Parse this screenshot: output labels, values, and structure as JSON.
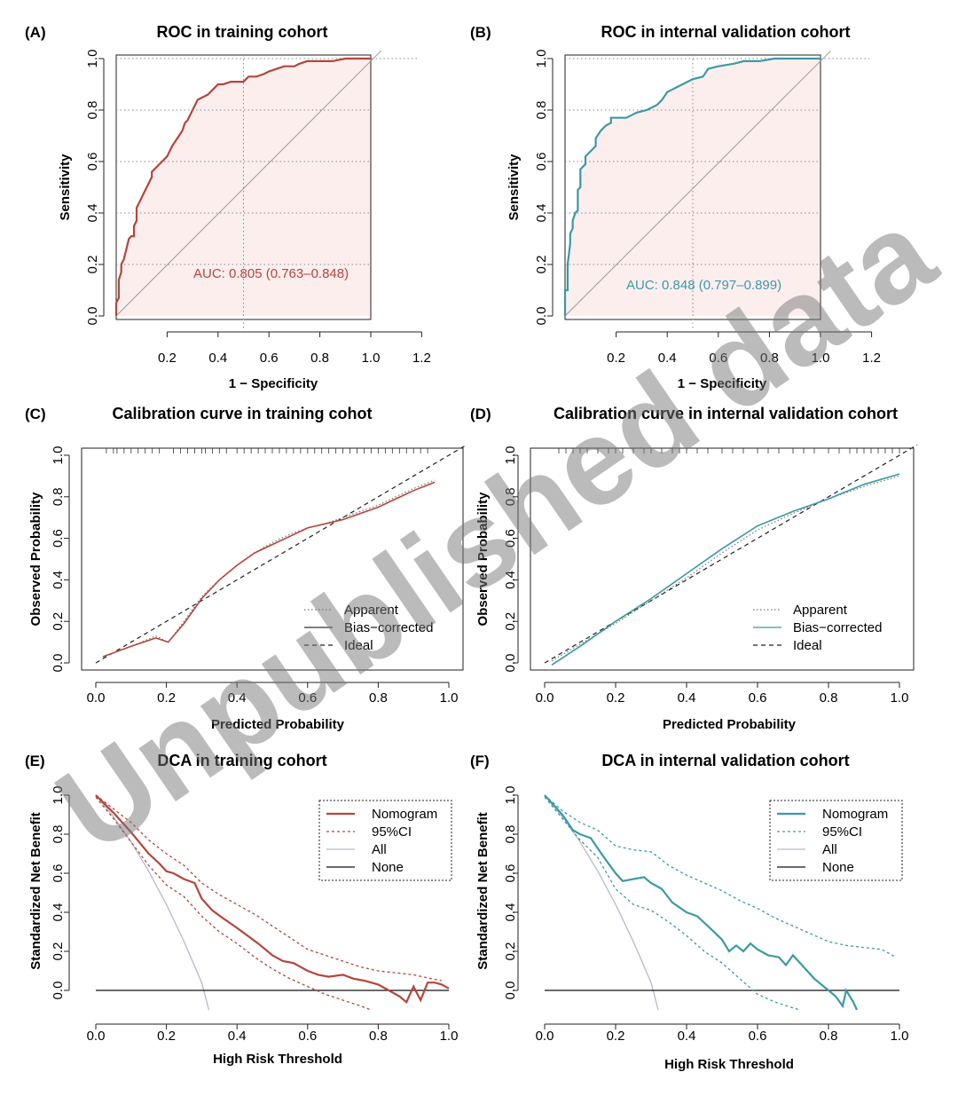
{
  "watermark": "Unpublished data",
  "colors": {
    "train": "#b5453a",
    "valid": "#3a9aa5",
    "fill": "#fdeeee",
    "all": "#b9b6cf",
    "none": "#111111",
    "ideal": "#222222"
  },
  "chart_data": [
    {
      "id": "A",
      "label": "(A)",
      "title": "ROC in training cohort",
      "type": "line",
      "xlabel": "1 − Specificity",
      "ylabel": "Sensitivity",
      "xlim": [
        0.0,
        1.2
      ],
      "ylim": [
        0.0,
        1.0
      ],
      "xticks": [
        "0.2",
        "0.4",
        "0.6",
        "0.8",
        "1.0",
        "1.2"
      ],
      "yticks": [
        "0.0",
        "0.2",
        "0.4",
        "0.6",
        "0.8",
        "1.0"
      ],
      "annotation": "AUC: 0.805 (0.763–0.848)",
      "series": [
        {
          "role": "roc",
          "x": [
            0.0,
            0.0,
            0.01,
            0.01,
            0.02,
            0.02,
            0.03,
            0.04,
            0.05,
            0.06,
            0.07,
            0.07,
            0.08,
            0.08,
            0.1,
            0.12,
            0.14,
            0.14,
            0.16,
            0.18,
            0.2,
            0.21,
            0.22,
            0.24,
            0.26,
            0.27,
            0.28,
            0.3,
            0.31,
            0.32,
            0.34,
            0.36,
            0.38,
            0.4,
            0.42,
            0.45,
            0.5,
            0.52,
            0.55,
            0.58,
            0.6,
            0.63,
            0.66,
            0.7,
            0.72,
            0.75,
            0.8,
            0.85,
            0.9,
            0.97,
            1.0
          ],
          "y": [
            0.0,
            0.05,
            0.07,
            0.14,
            0.17,
            0.2,
            0.22,
            0.26,
            0.3,
            0.31,
            0.31,
            0.35,
            0.37,
            0.42,
            0.46,
            0.5,
            0.54,
            0.56,
            0.58,
            0.6,
            0.62,
            0.64,
            0.66,
            0.69,
            0.72,
            0.75,
            0.76,
            0.8,
            0.82,
            0.84,
            0.85,
            0.86,
            0.88,
            0.9,
            0.9,
            0.91,
            0.91,
            0.93,
            0.93,
            0.94,
            0.95,
            0.96,
            0.97,
            0.97,
            0.98,
            0.99,
            0.99,
            0.99,
            1.0,
            1.0,
            1.0
          ]
        }
      ],
      "diagonal": [
        [
          0.0,
          0.0
        ],
        [
          1.04,
          1.03
        ]
      ],
      "vline": 1.0,
      "dotted_grid": {
        "h": [
          0.8,
          0.6,
          0.4,
          0.2
        ],
        "v": [
          0.5
        ],
        "h_top": 1.0
      }
    },
    {
      "id": "B",
      "label": "(B)",
      "title": "ROC in internal validation cohort",
      "type": "line",
      "xlabel": "1 − Specificity",
      "ylabel": "Sensitivity",
      "xlim": [
        0.0,
        1.2
      ],
      "ylim": [
        0.0,
        1.0
      ],
      "xticks": [
        "0.2",
        "0.4",
        "0.6",
        "0.8",
        "1.0",
        "1.2"
      ],
      "yticks": [
        "0.0",
        "0.2",
        "0.4",
        "0.6",
        "0.8",
        "1.0"
      ],
      "annotation": "AUC: 0.848 (0.797–0.899)",
      "series": [
        {
          "role": "roc",
          "x": [
            0.0,
            0.0,
            0.01,
            0.01,
            0.02,
            0.02,
            0.03,
            0.03,
            0.04,
            0.05,
            0.05,
            0.06,
            0.06,
            0.08,
            0.08,
            0.1,
            0.12,
            0.12,
            0.14,
            0.16,
            0.18,
            0.18,
            0.2,
            0.24,
            0.26,
            0.28,
            0.32,
            0.36,
            0.38,
            0.4,
            0.42,
            0.44,
            0.46,
            0.5,
            0.54,
            0.56,
            0.6,
            0.66,
            0.7,
            0.76,
            0.82,
            0.9,
            1.0
          ],
          "y": [
            0.0,
            0.1,
            0.1,
            0.2,
            0.28,
            0.32,
            0.34,
            0.37,
            0.4,
            0.41,
            0.49,
            0.5,
            0.57,
            0.59,
            0.62,
            0.64,
            0.66,
            0.69,
            0.72,
            0.74,
            0.75,
            0.77,
            0.77,
            0.77,
            0.78,
            0.79,
            0.8,
            0.82,
            0.84,
            0.87,
            0.88,
            0.89,
            0.9,
            0.92,
            0.93,
            0.96,
            0.97,
            0.98,
            0.99,
            0.99,
            1.0,
            1.0,
            1.0
          ]
        }
      ],
      "diagonal": [
        [
          0.0,
          0.0
        ],
        [
          1.04,
          1.03
        ]
      ],
      "vline": 1.0,
      "dotted_grid": {
        "h": [
          0.8,
          0.6,
          0.4,
          0.2
        ],
        "v": [
          0.5
        ],
        "h_top": 1.0
      }
    },
    {
      "id": "C",
      "label": "(C)",
      "title": "Calibration curve  in training cohot",
      "type": "line",
      "xlabel": "Predicted Probability",
      "ylabel": "Observed Probability",
      "xlim": [
        0.0,
        1.0
      ],
      "ylim": [
        0.0,
        1.0
      ],
      "xticks": [
        "0.0",
        "0.2",
        "0.4",
        "0.6",
        "0.8",
        "1.0"
      ],
      "yticks": [
        "0.0",
        "0.2",
        "0.4",
        "0.6",
        "0.8",
        "1.0"
      ],
      "legend": {
        "position": "bottom-right",
        "entries": [
          "Apparent",
          "Bias−corrected",
          "Ideal"
        ],
        "styles": [
          "dotted",
          "solid",
          "dashed"
        ]
      },
      "rug": [
        0.03,
        0.05,
        0.06,
        0.08,
        0.1,
        0.12,
        0.14,
        0.16,
        0.18,
        0.22,
        0.24,
        0.26,
        0.28,
        0.3,
        0.31,
        0.33,
        0.35,
        0.37,
        0.4,
        0.42,
        0.44,
        0.46,
        0.48,
        0.5,
        0.52,
        0.54,
        0.56,
        0.58,
        0.6,
        0.62,
        0.64,
        0.66,
        0.68,
        0.7,
        0.72,
        0.74,
        0.76,
        0.78,
        0.8,
        0.82,
        0.84,
        0.86,
        0.88,
        0.9,
        0.92,
        0.94
      ],
      "series": [
        {
          "name": "Apparent",
          "x": [
            0.02,
            0.1,
            0.17,
            0.205,
            0.25,
            0.3,
            0.35,
            0.4,
            0.45,
            0.5,
            0.55,
            0.6,
            0.65,
            0.7,
            0.75,
            0.8,
            0.85,
            0.9,
            0.96
          ],
          "y": [
            0.03,
            0.08,
            0.13,
            0.1,
            0.2,
            0.32,
            0.4,
            0.47,
            0.53,
            0.58,
            0.62,
            0.65,
            0.67,
            0.7,
            0.73,
            0.76,
            0.8,
            0.84,
            0.88
          ]
        },
        {
          "name": "Bias−corrected",
          "x": [
            0.02,
            0.1,
            0.17,
            0.205,
            0.25,
            0.3,
            0.35,
            0.4,
            0.45,
            0.5,
            0.55,
            0.6,
            0.65,
            0.7,
            0.75,
            0.8,
            0.85,
            0.9,
            0.96
          ],
          "y": [
            0.03,
            0.08,
            0.12,
            0.1,
            0.19,
            0.31,
            0.4,
            0.47,
            0.53,
            0.57,
            0.61,
            0.65,
            0.67,
            0.69,
            0.72,
            0.75,
            0.79,
            0.83,
            0.87
          ]
        },
        {
          "name": "Ideal",
          "x": [
            0.0,
            1.05
          ],
          "y": [
            0.0,
            1.05
          ]
        }
      ]
    },
    {
      "id": "D",
      "label": "(D)",
      "title": "Calibration curve  in internal validation cohort",
      "type": "line",
      "xlabel": "Predicted Probability",
      "ylabel": "Observed Probability",
      "xlim": [
        0.0,
        1.0
      ],
      "ylim": [
        0.0,
        1.0
      ],
      "xticks": [
        "0.0",
        "0.2",
        "0.4",
        "0.6",
        "0.8",
        "1.0"
      ],
      "yticks": [
        "0.0",
        "0.2",
        "0.4",
        "0.6",
        "0.8",
        "1.0"
      ],
      "legend": {
        "position": "bottom-right",
        "entries": [
          "Apparent",
          "Bias−corrected",
          "Ideal"
        ],
        "styles": [
          "dotted",
          "solid",
          "dashed"
        ]
      },
      "rug": [
        0.04,
        0.06,
        0.08,
        0.1,
        0.12,
        0.15,
        0.18,
        0.2,
        0.22,
        0.25,
        0.28,
        0.3,
        0.33,
        0.36,
        0.38,
        0.4,
        0.43,
        0.46,
        0.5,
        0.53,
        0.56,
        0.6,
        0.63,
        0.66,
        0.7,
        0.73,
        0.76,
        0.8,
        0.83,
        0.86,
        0.88,
        0.9,
        0.92,
        0.94,
        0.96,
        0.98,
        1.0
      ],
      "series": [
        {
          "name": "Apparent",
          "x": [
            0.02,
            0.1,
            0.2,
            0.3,
            0.4,
            0.5,
            0.6,
            0.7,
            0.8,
            0.9,
            1.0
          ],
          "y": [
            0.01,
            0.09,
            0.19,
            0.3,
            0.41,
            0.53,
            0.64,
            0.72,
            0.79,
            0.85,
            0.9
          ]
        },
        {
          "name": "Bias−corrected",
          "x": [
            0.02,
            0.1,
            0.2,
            0.3,
            0.4,
            0.5,
            0.6,
            0.7,
            0.8,
            0.9,
            1.0
          ],
          "y": [
            -0.01,
            0.08,
            0.2,
            0.31,
            0.43,
            0.55,
            0.66,
            0.73,
            0.79,
            0.86,
            0.91
          ]
        },
        {
          "name": "Ideal",
          "x": [
            0.0,
            1.05
          ],
          "y": [
            0.0,
            1.05
          ]
        }
      ]
    },
    {
      "id": "E",
      "label": "(E)",
      "title": "DCA in training cohort",
      "type": "line",
      "xlabel": "High Risk Threshold",
      "ylabel": "Standardized Net Benefit",
      "xlim": [
        0.0,
        1.0
      ],
      "ylim": [
        -0.1,
        1.0
      ],
      "xticks": [
        "0.0",
        "0.2",
        "0.4",
        "0.6",
        "0.8",
        "1.0"
      ],
      "yticks": [
        "0.0",
        "0.2",
        "0.4",
        "0.6",
        "0.8",
        "1.0"
      ],
      "legend": {
        "position": "top-right",
        "entries": [
          "Nomogram",
          "95%CI",
          "All",
          "None"
        ],
        "styles": [
          "solid",
          "dashed",
          "thin",
          "black"
        ]
      },
      "series": [
        {
          "name": "Nomogram",
          "x": [
            0.0,
            0.05,
            0.1,
            0.15,
            0.18,
            0.2,
            0.22,
            0.25,
            0.28,
            0.3,
            0.33,
            0.36,
            0.4,
            0.43,
            0.46,
            0.5,
            0.53,
            0.56,
            0.6,
            0.63,
            0.66,
            0.7,
            0.73,
            0.76,
            0.8,
            0.83,
            0.86,
            0.88,
            0.9,
            0.92,
            0.94,
            0.96,
            0.98,
            1.0
          ],
          "y": [
            1.0,
            0.91,
            0.81,
            0.7,
            0.65,
            0.61,
            0.6,
            0.57,
            0.55,
            0.47,
            0.41,
            0.37,
            0.32,
            0.28,
            0.24,
            0.18,
            0.15,
            0.14,
            0.1,
            0.08,
            0.07,
            0.08,
            0.06,
            0.05,
            0.03,
            0.0,
            -0.03,
            -0.06,
            0.02,
            -0.05,
            0.04,
            0.04,
            0.03,
            0.01
          ]
        },
        {
          "name": "95%CI",
          "x": [
            0.0,
            0.05,
            0.1,
            0.15,
            0.2,
            0.25,
            0.3,
            0.35,
            0.4,
            0.45,
            0.5,
            0.55,
            0.6,
            0.65,
            0.7,
            0.75,
            0.8,
            0.85,
            0.9,
            0.95,
            0.98
          ],
          "y": [
            1.0,
            0.93,
            0.86,
            0.77,
            0.7,
            0.64,
            0.55,
            0.49,
            0.44,
            0.39,
            0.33,
            0.27,
            0.21,
            0.18,
            0.15,
            0.12,
            0.1,
            0.09,
            0.08,
            0.06,
            0.05
          ]
        },
        {
          "name": "95%CI lower",
          "x": [
            0.0,
            0.05,
            0.1,
            0.15,
            0.2,
            0.25,
            0.3,
            0.35,
            0.4,
            0.45,
            0.5,
            0.55,
            0.6,
            0.65,
            0.7,
            0.75,
            0.78
          ],
          "y": [
            0.99,
            0.88,
            0.76,
            0.64,
            0.54,
            0.48,
            0.38,
            0.3,
            0.24,
            0.17,
            0.11,
            0.06,
            0.02,
            -0.02,
            -0.05,
            -0.08,
            -0.1
          ]
        },
        {
          "name": "All",
          "x": [
            0.0,
            0.05,
            0.1,
            0.15,
            0.2,
            0.25,
            0.3,
            0.32
          ],
          "y": [
            1.0,
            0.89,
            0.76,
            0.61,
            0.44,
            0.25,
            0.04,
            -0.1
          ]
        },
        {
          "name": "None",
          "x": [
            0.0,
            1.0
          ],
          "y": [
            0.0,
            0.0
          ]
        }
      ]
    },
    {
      "id": "F",
      "label": "(F)",
      "title": "DCA in internal validation cohort",
      "type": "line",
      "xlabel": "High Risk Threshold",
      "ylabel": "Standardized Net Benefit",
      "xlim": [
        0.0,
        1.0
      ],
      "ylim": [
        -0.1,
        1.0
      ],
      "xticks": [
        "0.0",
        "0.2",
        "0.4",
        "0.6",
        "0.8",
        "1.0"
      ],
      "yticks": [
        "0.0",
        "0.2",
        "0.4",
        "0.6",
        "0.8",
        "1.0"
      ],
      "legend": {
        "position": "top-right",
        "entries": [
          "Nomogram",
          "95%CI",
          "All",
          "None"
        ],
        "styles": [
          "solid",
          "dashed",
          "thin",
          "black"
        ]
      },
      "series": [
        {
          "name": "Nomogram",
          "x": [
            0.0,
            0.05,
            0.08,
            0.1,
            0.13,
            0.16,
            0.2,
            0.22,
            0.25,
            0.28,
            0.3,
            0.33,
            0.36,
            0.4,
            0.43,
            0.46,
            0.5,
            0.52,
            0.54,
            0.56,
            0.58,
            0.6,
            0.63,
            0.66,
            0.68,
            0.7,
            0.73,
            0.76,
            0.8,
            0.82,
            0.84,
            0.85,
            0.87,
            0.88
          ],
          "y": [
            1.0,
            0.9,
            0.82,
            0.8,
            0.78,
            0.7,
            0.6,
            0.56,
            0.57,
            0.58,
            0.55,
            0.52,
            0.45,
            0.4,
            0.38,
            0.33,
            0.26,
            0.2,
            0.23,
            0.2,
            0.24,
            0.21,
            0.18,
            0.17,
            0.13,
            0.18,
            0.12,
            0.06,
            0.0,
            -0.03,
            -0.08,
            0.0,
            -0.06,
            -0.1
          ]
        },
        {
          "name": "95%CI",
          "x": [
            0.0,
            0.05,
            0.1,
            0.15,
            0.2,
            0.25,
            0.3,
            0.35,
            0.4,
            0.45,
            0.5,
            0.55,
            0.6,
            0.65,
            0.7,
            0.75,
            0.8,
            0.85,
            0.9,
            0.95,
            0.99
          ],
          "y": [
            1.0,
            0.92,
            0.86,
            0.82,
            0.74,
            0.72,
            0.71,
            0.64,
            0.59,
            0.55,
            0.51,
            0.46,
            0.42,
            0.37,
            0.33,
            0.29,
            0.25,
            0.23,
            0.22,
            0.21,
            0.17
          ]
        },
        {
          "name": "95%CI lower",
          "x": [
            0.0,
            0.05,
            0.1,
            0.15,
            0.2,
            0.25,
            0.3,
            0.35,
            0.4,
            0.45,
            0.5,
            0.55,
            0.6,
            0.65,
            0.7,
            0.72
          ],
          "y": [
            0.99,
            0.88,
            0.77,
            0.68,
            0.52,
            0.44,
            0.41,
            0.35,
            0.28,
            0.2,
            0.14,
            0.06,
            -0.02,
            -0.06,
            -0.09,
            -0.1
          ]
        },
        {
          "name": "All",
          "x": [
            0.0,
            0.05,
            0.1,
            0.15,
            0.2,
            0.25,
            0.3,
            0.32
          ],
          "y": [
            1.0,
            0.89,
            0.76,
            0.61,
            0.44,
            0.25,
            0.04,
            -0.1
          ]
        },
        {
          "name": "None",
          "x": [
            0.0,
            1.0
          ],
          "y": [
            0.0,
            0.0
          ]
        }
      ]
    }
  ]
}
